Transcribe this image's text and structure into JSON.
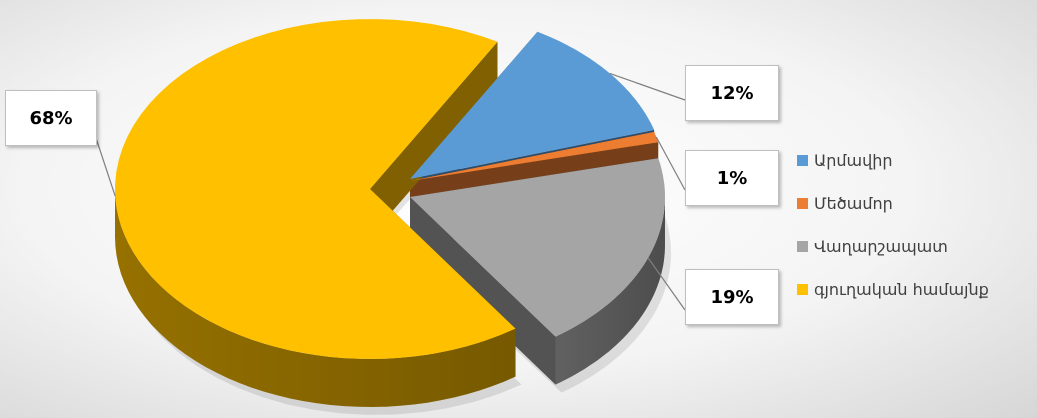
{
  "chart_data": {
    "type": "pie",
    "categories": [
      "Արմավիր",
      "Մեծամոր",
      "Վաղարշապատ",
      "գյուղական համայնք"
    ],
    "values": [
      12,
      1,
      19,
      68
    ],
    "labels": [
      "12%",
      "1%",
      "19%",
      "68%"
    ],
    "colors": [
      "#5b9bd5",
      "#ed7d31",
      "#a5a5a5",
      "#ffc000"
    ],
    "legend_position": "right",
    "style": "3d-exploded"
  }
}
